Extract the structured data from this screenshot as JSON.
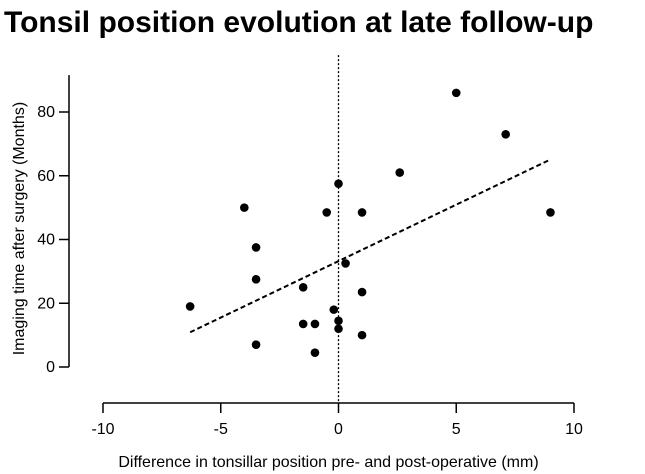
{
  "chart_data": {
    "type": "scatter",
    "title": "Tonsil position evolution at late follow-up",
    "xlabel": "Difference in tonsillar position pre- and post-operative (mm)",
    "ylabel": "Imaging time after surgery (Months)",
    "xlim": [
      -10,
      10
    ],
    "ylim": [
      0,
      90
    ],
    "xticks": [
      -10,
      -5,
      0,
      5,
      10
    ],
    "yticks": [
      0,
      20,
      40,
      60,
      80
    ],
    "grid": false,
    "legend": "none",
    "reference_line": {
      "axis": "x",
      "value": 0,
      "style": "dotted"
    },
    "trend_line": {
      "style": "dashed",
      "x": [
        -6.3,
        9.0
      ],
      "y": [
        10.9,
        65.1
      ]
    },
    "points": [
      {
        "x": -6.3,
        "y": 19
      },
      {
        "x": -4.0,
        "y": 50
      },
      {
        "x": -3.5,
        "y": 37.5
      },
      {
        "x": -3.5,
        "y": 27.5
      },
      {
        "x": -3.5,
        "y": 7
      },
      {
        "x": -1.5,
        "y": 25
      },
      {
        "x": -1.5,
        "y": 13.5
      },
      {
        "x": -1.0,
        "y": 13.5
      },
      {
        "x": -1.0,
        "y": 4.5
      },
      {
        "x": -0.5,
        "y": 48.5
      },
      {
        "x": -0.2,
        "y": 18
      },
      {
        "x": 0.0,
        "y": 57.5
      },
      {
        "x": 0.0,
        "y": 14.5
      },
      {
        "x": 0.0,
        "y": 12
      },
      {
        "x": 0.3,
        "y": 32.5
      },
      {
        "x": 1.0,
        "y": 48.5
      },
      {
        "x": 1.0,
        "y": 23.5
      },
      {
        "x": 1.0,
        "y": 10
      },
      {
        "x": 2.6,
        "y": 61
      },
      {
        "x": 5.0,
        "y": 86
      },
      {
        "x": 7.1,
        "y": 73
      },
      {
        "x": 9.0,
        "y": 48.5
      }
    ],
    "colors": {
      "points": "#000000",
      "lines": "#000000"
    }
  }
}
